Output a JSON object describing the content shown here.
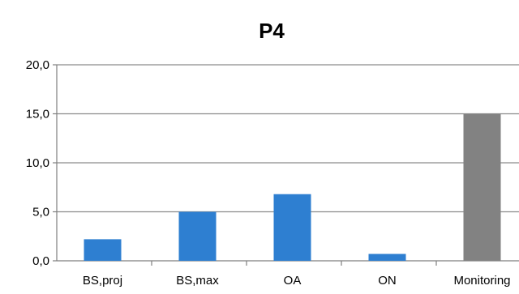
{
  "chart_data": {
    "type": "bar",
    "title": "P4",
    "xlabel": "",
    "ylabel": "",
    "categories": [
      "BS,proj",
      "BS,max",
      "OA",
      "ON",
      "Monitoring"
    ],
    "values": [
      2.2,
      5.0,
      6.8,
      0.7,
      15.0
    ],
    "bar_colors": [
      "#2e7fd1",
      "#2e7fd1",
      "#2e7fd1",
      "#2e7fd1",
      "#828282"
    ],
    "ylim": [
      0,
      20
    ],
    "yticks": [
      "0,0",
      "5,0",
      "10,0",
      "15,0",
      "20,0"
    ],
    "ytick_values": [
      0,
      5,
      10,
      15,
      20
    ],
    "grid": true,
    "legend": "none"
  },
  "colors": {
    "grid": "#8c8c8c",
    "axis": "#7f7f7f"
  }
}
